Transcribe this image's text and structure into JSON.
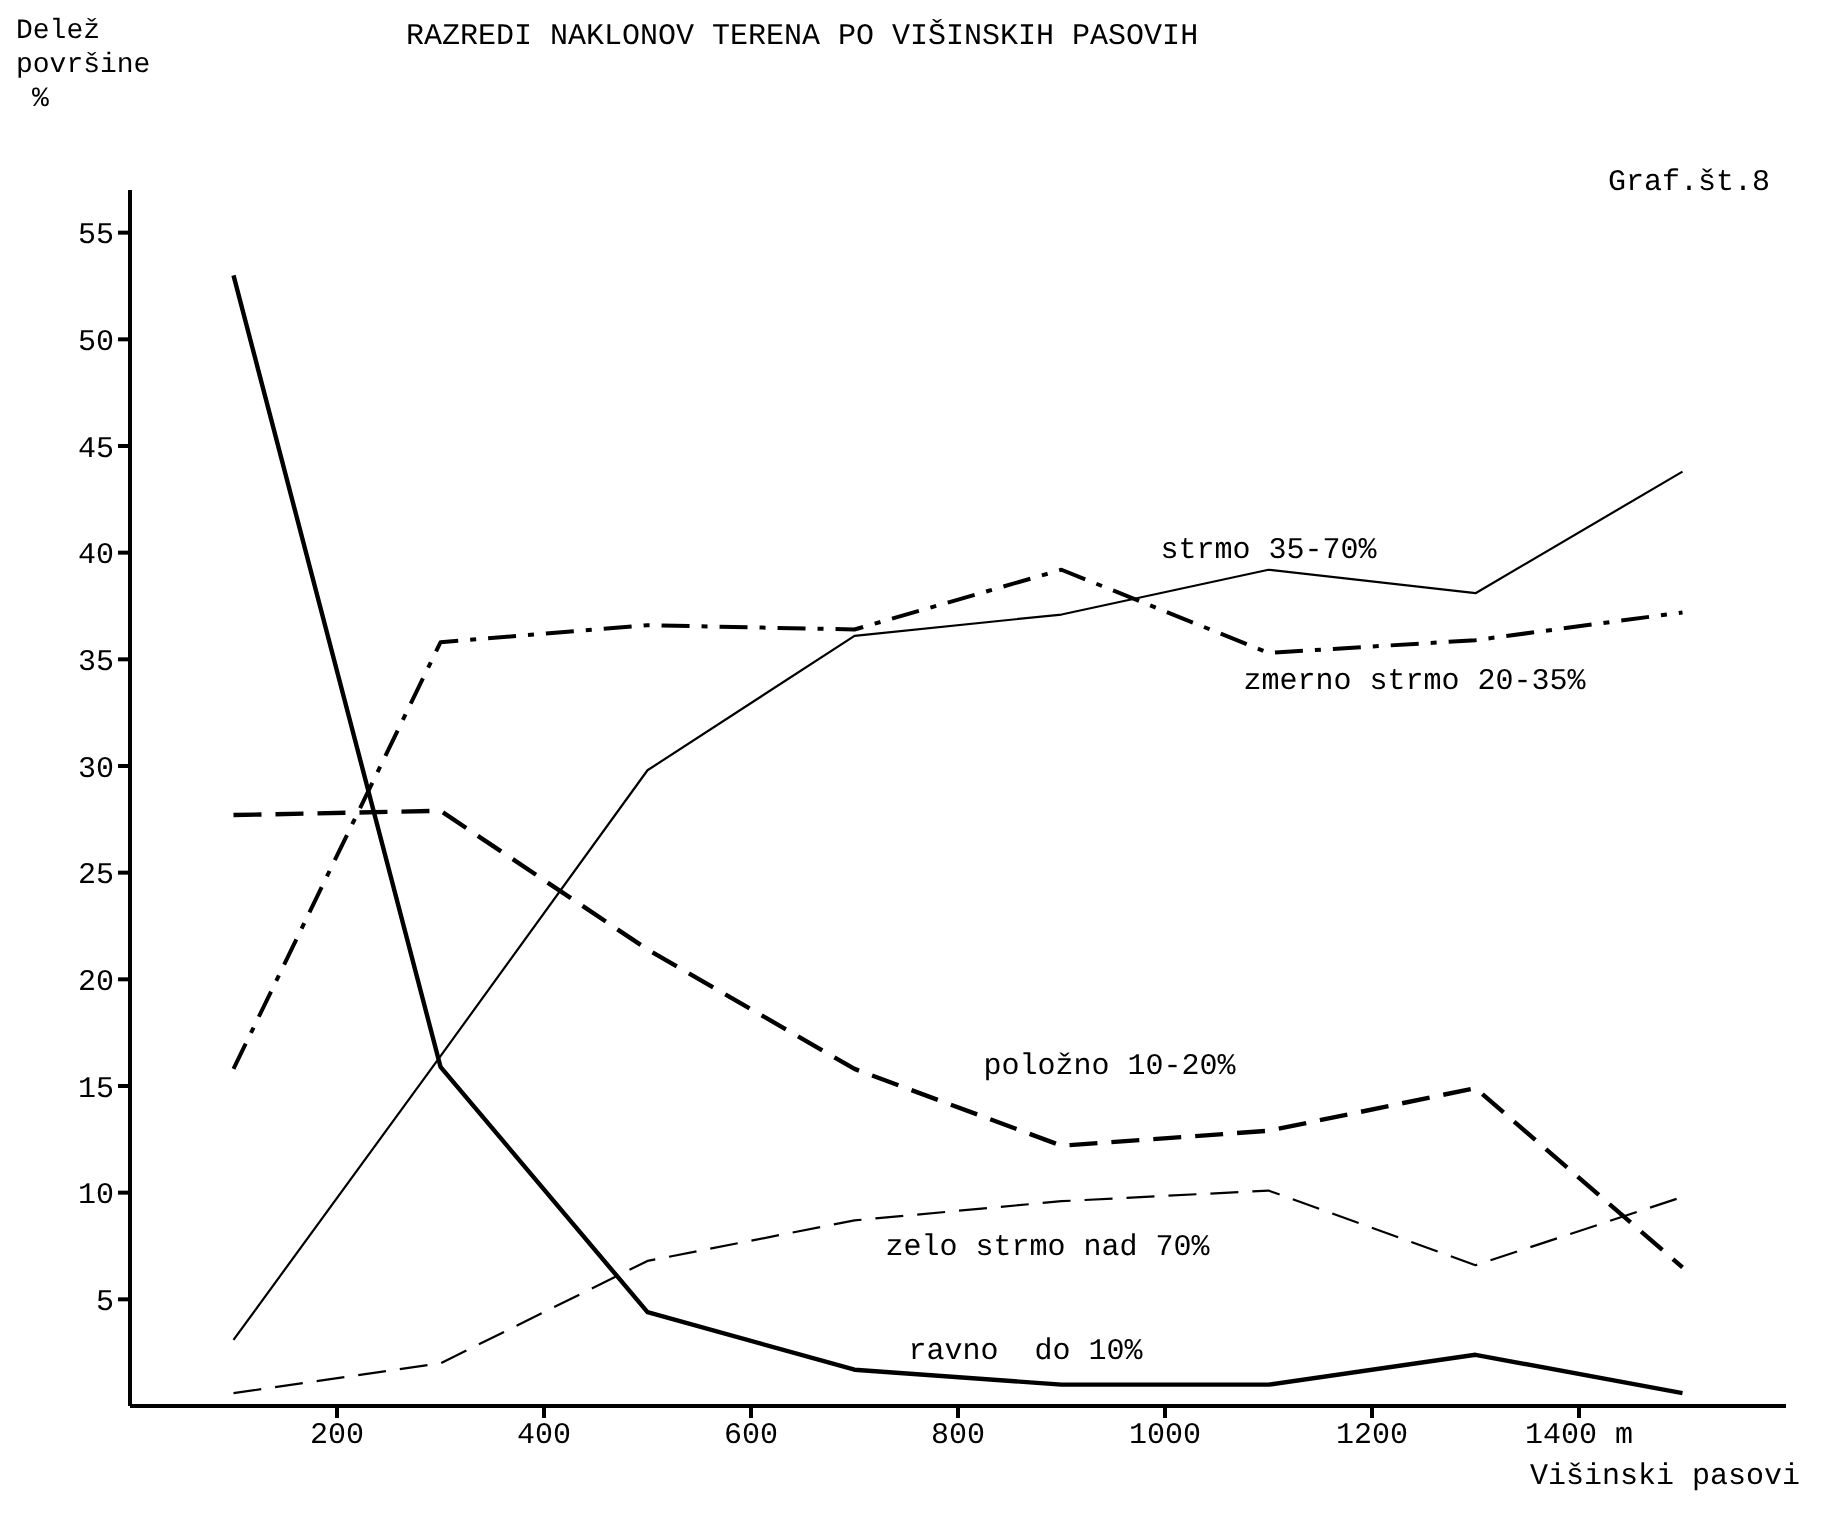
{
  "chart_data": {
    "type": "line",
    "title": "RAZREDI NAKLONOV TERENA PO VIŠINSKIH PASOVIH",
    "xlabel": "Višinski pasovi",
    "ylabel": "Delež površine %",
    "x": [
      100,
      300,
      500,
      700,
      900,
      1100,
      1300,
      1500
    ],
    "series": [
      {
        "name": "ravno  do 10%",
        "color": "#000000",
        "line_style": "solid",
        "values": [
          53.0,
          15.9,
          4.4,
          1.7,
          1.0,
          1.0,
          2.4,
          0.6
        ]
      },
      {
        "name": "strmo 35-70%",
        "color": "#000000",
        "line_style": "solid",
        "values": [
          3.1,
          16.4,
          29.8,
          36.1,
          37.1,
          39.2,
          38.1,
          43.8
        ]
      },
      {
        "name": "zmerno strmo 20-35%",
        "color": "#000000",
        "line_style": "dashdot",
        "values": [
          15.8,
          35.8,
          36.6,
          36.4,
          39.2,
          35.3,
          35.9,
          37.2
        ]
      },
      {
        "name": "položno 10-20%",
        "color": "#000000",
        "line_style": "dashed",
        "values": [
          27.7,
          27.9,
          21.4,
          15.8,
          12.2,
          12.9,
          14.9,
          6.5
        ]
      },
      {
        "name": "zelo strmo nad 70%",
        "color": "#000000",
        "line_style": "dashed",
        "values": [
          0.6,
          2.0,
          6.8,
          8.7,
          9.6,
          10.1,
          6.6,
          9.8
        ]
      }
    ],
    "xlim": [
      0,
      1600
    ],
    "xticks": [
      200,
      400,
      600,
      800,
      1000,
      1200,
      {
        "value": 1400,
        "label": "1400 m"
      }
    ],
    "ylim": [
      0,
      57
    ],
    "yticks": [
      5,
      10,
      15,
      20,
      25,
      30,
      35,
      40,
      45,
      50,
      55
    ],
    "annotations": [
      "Graf.št.8"
    ],
    "grid": false,
    "legend": false,
    "marker": "none"
  }
}
